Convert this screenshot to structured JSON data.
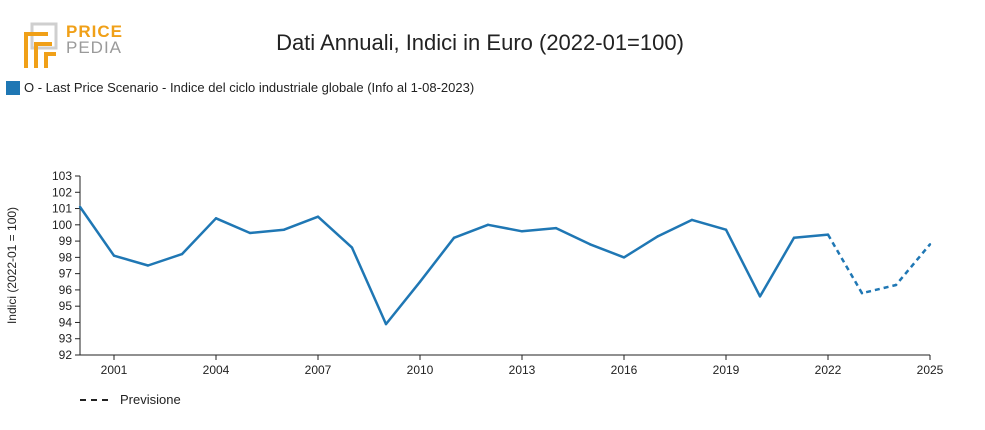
{
  "logo": {
    "line1": "PRICE",
    "line2": "PEDIA"
  },
  "colors": {
    "series": "#1f77b4",
    "logo_orange": "#f0a018",
    "logo_gray": "#9a9a9a"
  },
  "chart_data": {
    "type": "line",
    "title": "Dati Annuali, Indici in Euro (2022-01=100)",
    "ylabel": "Indici (2022-01 = 100)",
    "xlabel": "",
    "xlim": [
      2000,
      2025
    ],
    "ylim": [
      92,
      103
    ],
    "x_ticks": [
      2001,
      2004,
      2007,
      2010,
      2013,
      2016,
      2019,
      2022,
      2025
    ],
    "y_ticks": [
      92,
      93,
      94,
      95,
      96,
      97,
      98,
      99,
      100,
      101,
      102,
      103
    ],
    "legend_position": "top-left",
    "series": [
      {
        "name": "O - Last Price Scenario - Indice del ciclo industriale globale (Info al 1-08-2023)",
        "x": [
          2000,
          2001,
          2002,
          2003,
          2004,
          2005,
          2006,
          2007,
          2008,
          2009,
          2010,
          2011,
          2012,
          2013,
          2014,
          2015,
          2016,
          2017,
          2018,
          2019,
          2020,
          2021,
          2022
        ],
        "values": [
          101.1,
          98.1,
          97.5,
          98.2,
          100.4,
          99.5,
          99.7,
          100.5,
          98.6,
          93.9,
          96.5,
          99.2,
          100.0,
          99.6,
          99.8,
          98.8,
          98.0,
          99.3,
          100.3,
          99.7,
          95.6,
          99.2,
          99.4
        ]
      },
      {
        "name": "Previsione",
        "x": [
          2022,
          2023,
          2024,
          2025
        ],
        "values": [
          99.4,
          95.8,
          96.3,
          98.8
        ],
        "style": "dashed"
      }
    ]
  }
}
